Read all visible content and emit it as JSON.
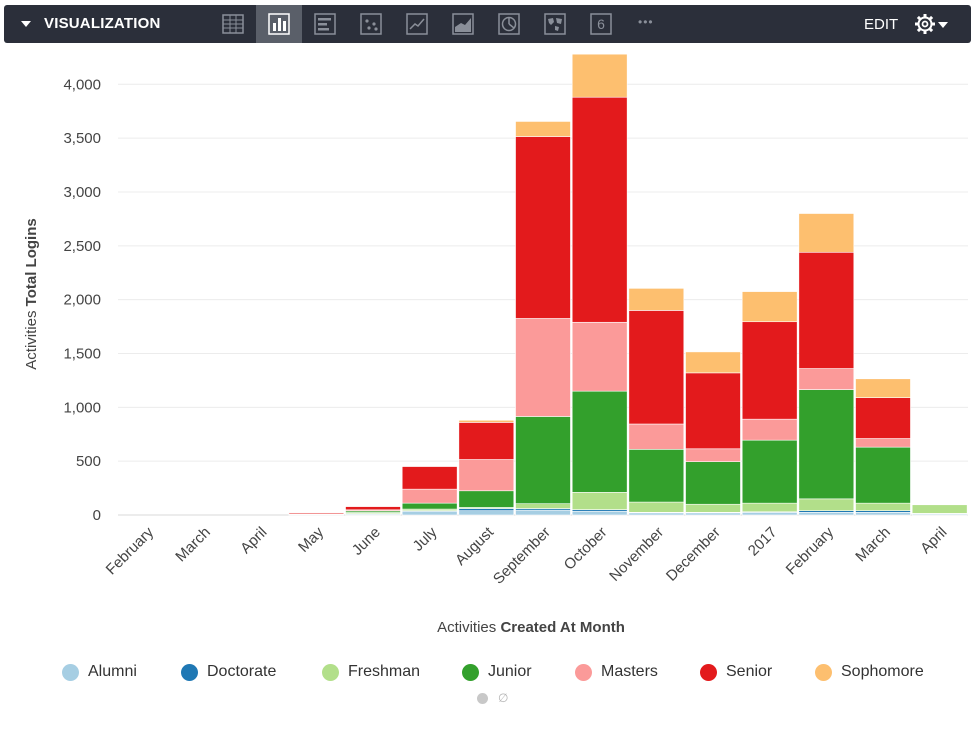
{
  "toolbar": {
    "title": "VISUALIZATION",
    "edit_label": "EDIT",
    "single_value_label": "6",
    "more_label": "•••",
    "buttons": [
      "table-icon",
      "column-chart-icon",
      "bar-chart-icon",
      "scatter-chart-icon",
      "line-chart-icon",
      "area-chart-icon",
      "pie-chart-icon",
      "map-icon",
      "single-value-icon",
      "more-icon"
    ],
    "active": "column-chart-icon"
  },
  "pager": {
    "null_symbol": "∅"
  },
  "chart_data": {
    "type": "bar",
    "stacked": true,
    "xlabel_prefix": "Activities ",
    "xlabel_bold": "Created At Month",
    "ylabel_prefix": "Activities ",
    "ylabel_bold": "Total Logins",
    "ylim": [
      0,
      4300
    ],
    "yticks": [
      0,
      500,
      1000,
      1500,
      2000,
      2500,
      3000,
      3500,
      4000
    ],
    "ytick_labels": [
      "0",
      "500",
      "1,000",
      "1,500",
      "2,000",
      "2,500",
      "3,000",
      "3,500",
      "4,000"
    ],
    "grid": true,
    "legend_position": "bottom",
    "categories": [
      "February",
      "March",
      "April",
      "May",
      "June",
      "July",
      "August",
      "September",
      "October",
      "November",
      "December",
      "2017",
      "February",
      "March",
      "April"
    ],
    "series": [
      {
        "name": "Alumni",
        "color": "#a6cee3",
        "values": [
          0,
          0,
          0,
          5,
          8,
          35,
          40,
          45,
          35,
          20,
          20,
          25,
          25,
          25,
          10
        ]
      },
      {
        "name": "Doctorate",
        "color": "#1f78b4",
        "values": [
          0,
          0,
          0,
          3,
          5,
          5,
          20,
          15,
          15,
          5,
          5,
          5,
          15,
          15,
          5
        ]
      },
      {
        "name": "Freshman",
        "color": "#b2df8a",
        "values": [
          0,
          0,
          0,
          2,
          10,
          15,
          10,
          45,
          160,
          95,
          75,
          80,
          110,
          70,
          80
        ]
      },
      {
        "name": "Junior",
        "color": "#33a02c",
        "values": [
          0,
          0,
          0,
          0,
          15,
          55,
          155,
          810,
          940,
          490,
          395,
          585,
          1015,
          520,
          0
        ]
      },
      {
        "name": "Masters",
        "color": "#fb9a99",
        "values": [
          0,
          0,
          0,
          0,
          10,
          130,
          290,
          910,
          640,
          235,
          120,
          195,
          195,
          80,
          0
        ]
      },
      {
        "name": "Senior",
        "color": "#e31a1c",
        "values": [
          0,
          0,
          0,
          10,
          30,
          210,
          345,
          1690,
          2090,
          1055,
          705,
          905,
          1080,
          380,
          0
        ]
      },
      {
        "name": "Sophomore",
        "color": "#fdbf6f",
        "values": [
          0,
          0,
          0,
          0,
          0,
          0,
          20,
          140,
          400,
          205,
          195,
          280,
          360,
          175,
          0
        ]
      }
    ]
  }
}
